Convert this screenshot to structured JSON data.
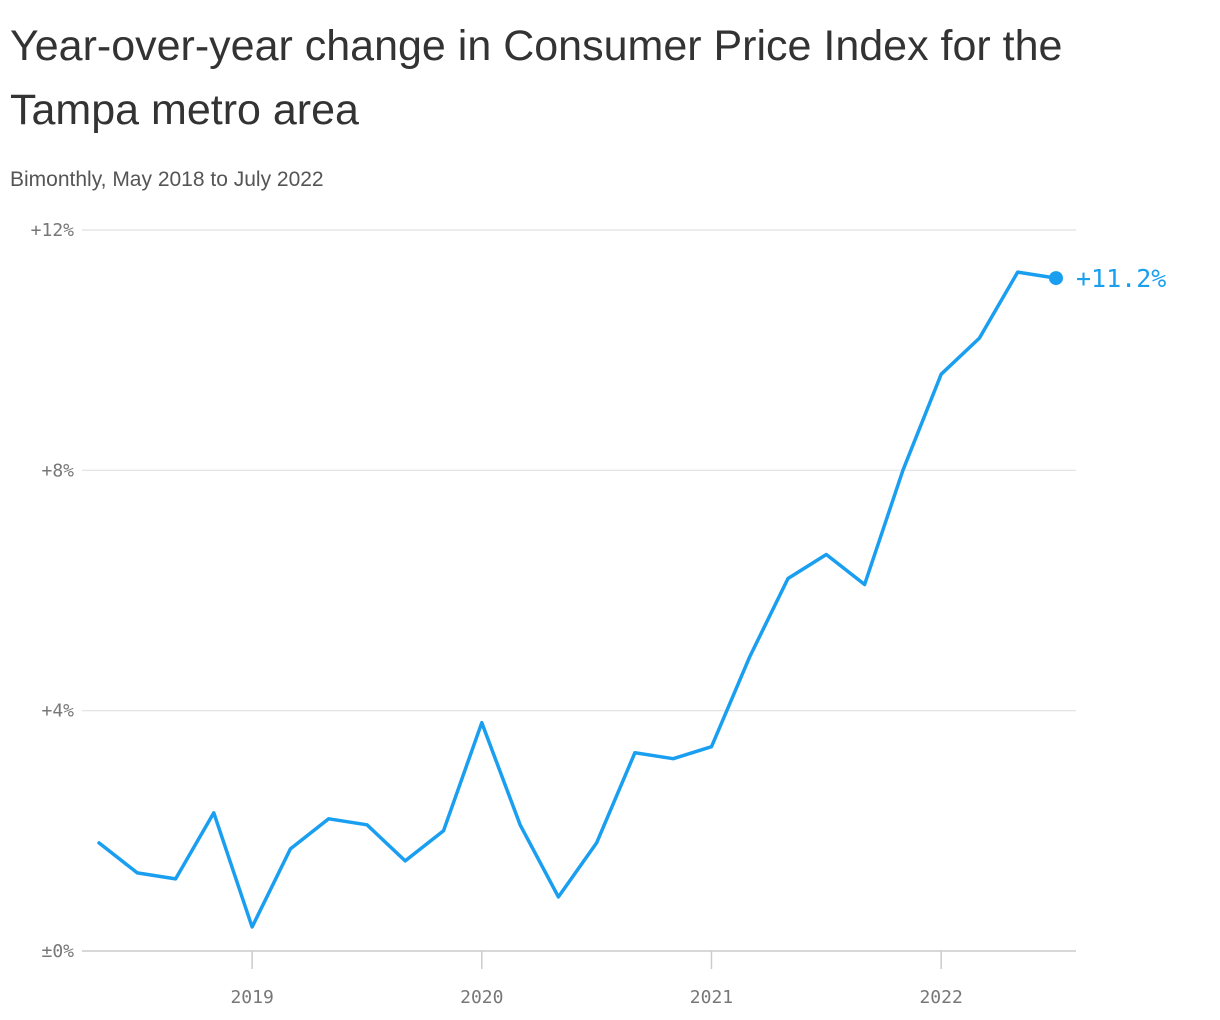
{
  "title": "Year-over-year change in Consumer Price Index for the Tampa metro area",
  "subtitle": "Bimonthly, May 2018 to July 2022",
  "colors": {
    "line": "#1a9ff0",
    "grid": "#e0e0e0",
    "axis": "#cccccc"
  },
  "chart_data": {
    "type": "line",
    "x": [
      "2018-05",
      "2018-07",
      "2018-09",
      "2018-11",
      "2019-01",
      "2019-03",
      "2019-05",
      "2019-07",
      "2019-09",
      "2019-11",
      "2020-01",
      "2020-03",
      "2020-05",
      "2020-07",
      "2020-09",
      "2020-11",
      "2021-01",
      "2021-03",
      "2021-05",
      "2021-07",
      "2021-09",
      "2021-11",
      "2022-01",
      "2022-03",
      "2022-05",
      "2022-07"
    ],
    "series": [
      {
        "values": [
          1.8,
          1.3,
          1.2,
          2.3,
          0.4,
          1.7,
          2.2,
          2.1,
          1.5,
          2.0,
          3.8,
          2.1,
          0.9,
          1.8,
          3.3,
          3.2,
          3.4,
          4.9,
          6.2,
          6.6,
          6.1,
          8.0,
          9.6,
          10.2,
          11.3,
          11.2
        ]
      }
    ],
    "y_ticks": [
      "+12%",
      "+8%",
      "+4%",
      "±0%"
    ],
    "y_tick_values": [
      12,
      8,
      4,
      0
    ],
    "ylim": [
      0,
      12
    ],
    "x_ticks": [
      "2019",
      "2020",
      "2021",
      "2022"
    ],
    "x_tick_values": [
      "2019-01",
      "2020-01",
      "2021-01",
      "2022-01"
    ],
    "grid": true,
    "end_label": "+11.2%"
  }
}
